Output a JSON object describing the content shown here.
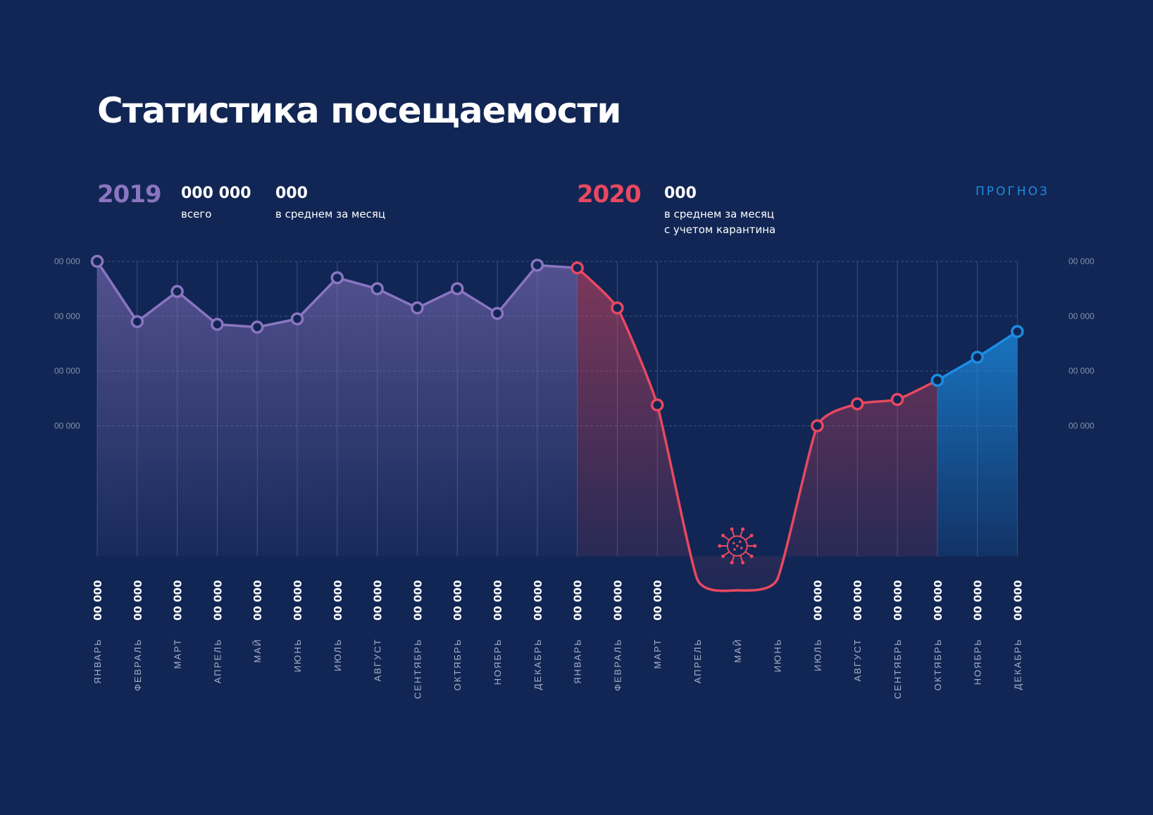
{
  "title": "Статистика посещаемости",
  "stats": {
    "y2019": {
      "year": "2019",
      "total_value": "000 000",
      "total_label": "всего",
      "avg_value": "000",
      "avg_label": "в среднем за месяц"
    },
    "y2020": {
      "year": "2020",
      "avg_value": "000",
      "avg_label_line1": "в среднем за месяц",
      "avg_label_line2": "с учетом карантина"
    },
    "forecast_label": "ПРОГНОЗ"
  },
  "colors": {
    "background": "#112654",
    "y2019": "#8a75c1",
    "y2020": "#e84860",
    "forecast": "#1b8de3",
    "grid": "#3b4f7d",
    "axis_text": "#8590ad",
    "month_text": "#a9b0c7"
  },
  "icons": {
    "quarantine_marker": "virus-icon"
  },
  "chart_data": {
    "type": "line",
    "title": "Статистика посещаемости",
    "y_tick_labels": [
      "00 000",
      "00 000",
      "00 000",
      "00 000"
    ],
    "grid": true,
    "categories": [
      "ЯНВАРЬ",
      "ФЕВРАЛЬ",
      "МАРТ",
      "АПРЕЛЬ",
      "МАЙ",
      "ИЮНЬ",
      "ИЮЛЬ",
      "АВГУСТ",
      "СЕНТЯБРЬ",
      "ОКТЯБРЬ",
      "НОЯБРЬ",
      "ДЕКАБРЬ",
      "ЯНВАРЬ",
      "ФЕВРАЛЬ",
      "МАРТ",
      "АПРЕЛЬ",
      "МАЙ",
      "ИЮНЬ",
      "ИЮЛЬ",
      "АВГУСТ",
      "СЕНТЯБРЬ",
      "ОКТЯБРЬ",
      "НОЯБРЬ",
      "ДЕКАБРЬ"
    ],
    "series": [
      {
        "name": "2019",
        "values": [
          4.0,
          2.9,
          3.45,
          2.85,
          2.8,
          2.95,
          3.7,
          3.5,
          3.15,
          3.5,
          3.05,
          3.93,
          null,
          null,
          null,
          null,
          null,
          null,
          null,
          null,
          null,
          null,
          null,
          null
        ]
      },
      {
        "name": "2020",
        "values": [
          null,
          null,
          null,
          null,
          null,
          null,
          null,
          null,
          null,
          null,
          null,
          null,
          3.88,
          3.15,
          1.38,
          -1.8,
          -2.0,
          -1.8,
          1.0,
          1.4,
          1.48,
          null,
          null,
          null
        ]
      },
      {
        "name": "ПРОГНОЗ",
        "values": [
          null,
          null,
          null,
          null,
          null,
          null,
          null,
          null,
          null,
          null,
          null,
          null,
          null,
          null,
          null,
          null,
          null,
          null,
          null,
          null,
          null,
          1.83,
          2.25,
          2.72
        ]
      }
    ],
    "point_labels": [
      "00 000",
      "00 000",
      "00 000",
      "00 000",
      "00 000",
      "00 000",
      "00 000",
      "00 000",
      "00 000",
      "00 000",
      "00 000",
      "00 000",
      "00 000",
      "00 000",
      "00 000",
      "",
      "",
      "",
      "00 000",
      "00 000",
      "00 000",
      "00 000",
      "00 000",
      "00 000"
    ],
    "ylim": [
      -2.0,
      4.0
    ]
  }
}
